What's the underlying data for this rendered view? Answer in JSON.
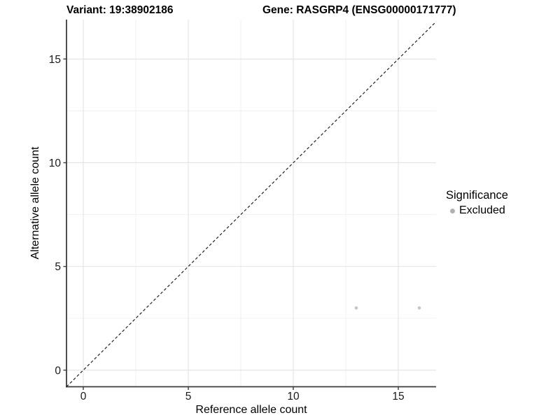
{
  "chart_data": {
    "type": "scatter",
    "titles": {
      "variant": "Variant: 19:38902186",
      "gene": "Gene: RASGRP4 (ENSG00000171777)"
    },
    "xlabel": "Reference allele count",
    "ylabel": "Alternative allele count",
    "xlim": [
      -0.8,
      16.8
    ],
    "ylim": [
      -0.8,
      16.9
    ],
    "xticks": [
      0,
      5,
      10,
      15
    ],
    "yticks": [
      0,
      5,
      10,
      15
    ],
    "minor_ticks": [
      2.5,
      7.5,
      12.5
    ],
    "grid": true,
    "reference_line": {
      "slope": 1,
      "intercept": 0,
      "style": "dashed",
      "color": "#222222"
    },
    "series": [
      {
        "name": "Excluded",
        "points": [
          [
            13,
            3
          ],
          [
            16,
            3
          ]
        ],
        "color": "#c5c5c5",
        "radius": 2.3
      }
    ],
    "legend": {
      "title": "Significance",
      "position": "right",
      "entries": [
        {
          "label": "Excluded",
          "color": "#b2b2b2"
        }
      ]
    },
    "colors": {
      "axis_line": "#3c3c3c",
      "tick_label": "#1a1a1a",
      "grid_major": "#e3e3e3",
      "grid_minor": "#f0f0f0",
      "background": "#ffffff"
    }
  }
}
